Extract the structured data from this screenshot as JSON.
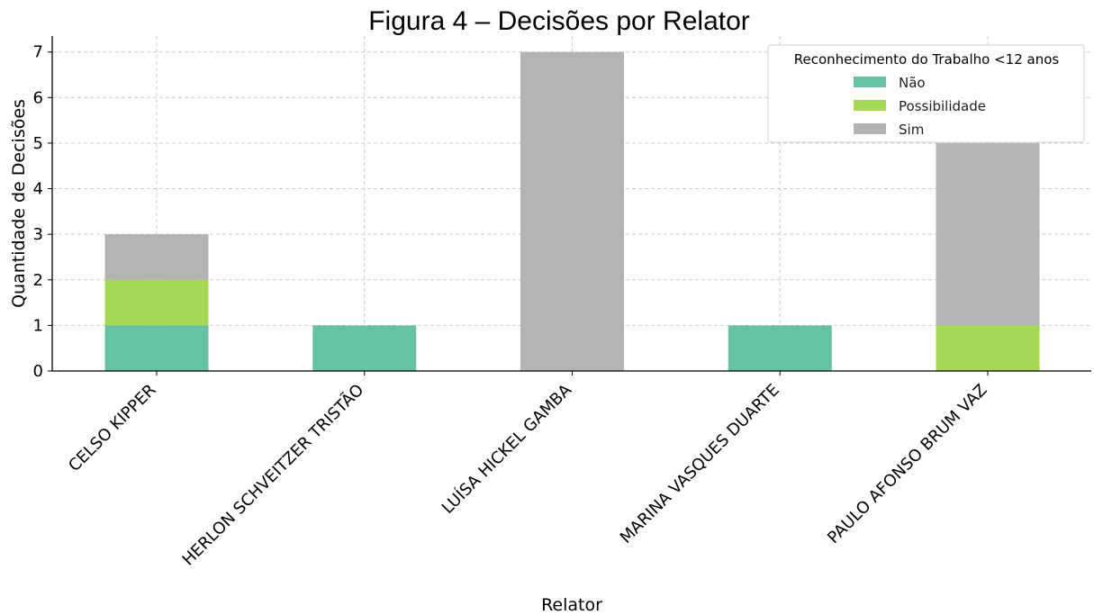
{
  "chart_data": {
    "type": "bar",
    "stacked": true,
    "title": "Figura 4 – Decisões por Relator",
    "xlabel": "Relator",
    "ylabel": "Quantidade de Decisões",
    "ylim": [
      0,
      7.35
    ],
    "yticks": [
      "0",
      "1",
      "2",
      "3",
      "4",
      "5",
      "6",
      "7"
    ],
    "grid": true,
    "legend_title": "Reconhecimento do Trabalho <12 anos",
    "legend_position": "top-right",
    "categories": [
      "CELSO KIPPER",
      "HERLON SCHVEITZER TRISTÃO",
      "LUÍSA HICKEL GAMBA",
      "MARINA VASQUES DUARTE",
      "PAULO AFONSO BRUM VAZ"
    ],
    "series": [
      {
        "name": "Não",
        "color": "#66c2a5",
        "values": [
          1,
          1,
          0,
          1,
          0
        ]
      },
      {
        "name": "Possibilidade",
        "color": "#a6d854",
        "values": [
          1,
          0,
          0,
          0,
          1
        ]
      },
      {
        "name": "Sim",
        "color": "#b3b3b3",
        "values": [
          1,
          0,
          7,
          0,
          4
        ]
      }
    ]
  }
}
